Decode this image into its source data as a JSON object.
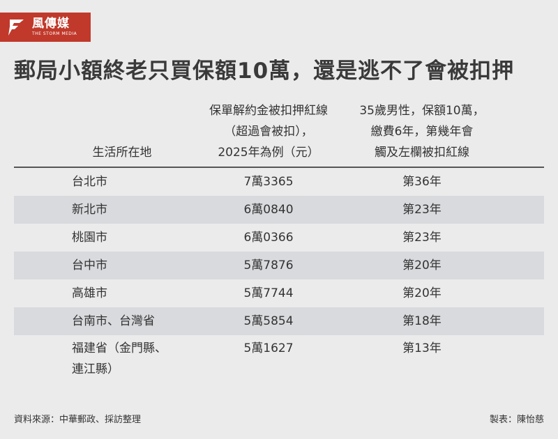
{
  "logo": {
    "name_cn": "風傳媒",
    "name_en": "THE STORM MEDIA"
  },
  "title": "郵局小額終老只買保額10萬，還是逃不了會被扣押",
  "table": {
    "headers": {
      "location": [
        "生活所在地"
      ],
      "limit": [
        "保單解約金被扣押紅線",
        "（超過會被扣），",
        "2025年為例（元）"
      ],
      "year": [
        "35歲男性，保額10萬，",
        "繳費6年，第幾年會",
        "觸及左欄被扣紅線"
      ]
    },
    "rows": [
      {
        "location": [
          "台北市"
        ],
        "limit": "7萬3365",
        "year": "第36年"
      },
      {
        "location": [
          "新北市"
        ],
        "limit": "6萬0840",
        "year": "第23年"
      },
      {
        "location": [
          "桃園市"
        ],
        "limit": "6萬0366",
        "year": "第23年"
      },
      {
        "location": [
          "台中市"
        ],
        "limit": "5萬7876",
        "year": "第20年"
      },
      {
        "location": [
          "高雄市"
        ],
        "limit": "5萬7744",
        "year": "第20年"
      },
      {
        "location": [
          "台南市、台灣省"
        ],
        "limit": "5萬5854",
        "year": "第18年"
      },
      {
        "location": [
          "福建省（金門縣、",
          "連江縣）"
        ],
        "limit": "5萬1627",
        "year": "第13年"
      }
    ]
  },
  "footer": {
    "source": "資料來源：中華郵政、採訪整理",
    "credit": "製表：陳怡慈"
  },
  "colors": {
    "brand": "#c0392b",
    "background": "#ebebeb",
    "row_alt": "#d8dadd"
  }
}
